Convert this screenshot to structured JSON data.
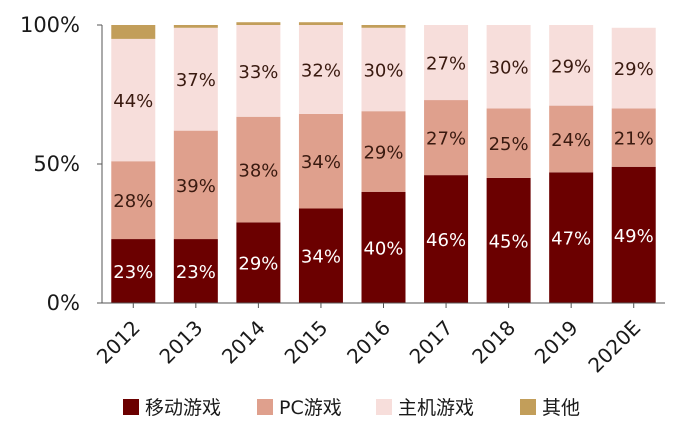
{
  "chart_data": {
    "type": "bar",
    "stacked": true,
    "categories": [
      "2012",
      "2013",
      "2014",
      "2015",
      "2016",
      "2017",
      "2018",
      "2019",
      "2020E"
    ],
    "series": [
      {
        "name": "移动游戏",
        "color": "#6b0000",
        "label_color": "#ffffff",
        "values": [
          23,
          23,
          29,
          34,
          40,
          46,
          45,
          47,
          49
        ],
        "labels": [
          "23%",
          "23%",
          "29%",
          "34%",
          "40%",
          "46%",
          "45%",
          "47%",
          "49%"
        ]
      },
      {
        "name": "PC游戏",
        "color": "#dfa08d",
        "label_color": "#3a1a10",
        "values": [
          28,
          39,
          38,
          34,
          29,
          27,
          25,
          24,
          21
        ],
        "labels": [
          "28%",
          "39%",
          "38%",
          "34%",
          "29%",
          "27%",
          "25%",
          "24%",
          "21%"
        ]
      },
      {
        "name": "主机游戏",
        "color": "#f7dedb",
        "label_color": "#3a1a10",
        "values": [
          44,
          37,
          33,
          32,
          30,
          27,
          30,
          29,
          29
        ],
        "labels": [
          "44%",
          "37%",
          "33%",
          "32%",
          "30%",
          "27%",
          "30%",
          "29%",
          "29%"
        ]
      },
      {
        "name": "其他",
        "color": "#c29e5a",
        "label_color": "#3a1a10",
        "values": [
          5,
          1,
          1,
          1,
          1,
          0,
          0,
          0,
          0
        ],
        "labels": [
          "",
          "",
          "",
          "",
          "",
          "",
          "",
          "",
          ""
        ]
      }
    ],
    "ylim": [
      0,
      100
    ],
    "yticks": [
      0,
      50,
      100
    ],
    "ytick_labels": [
      "0%",
      "50%",
      "100%"
    ],
    "title": "",
    "xlabel": "",
    "ylabel": "",
    "grid": false,
    "legend_position": "bottom"
  }
}
